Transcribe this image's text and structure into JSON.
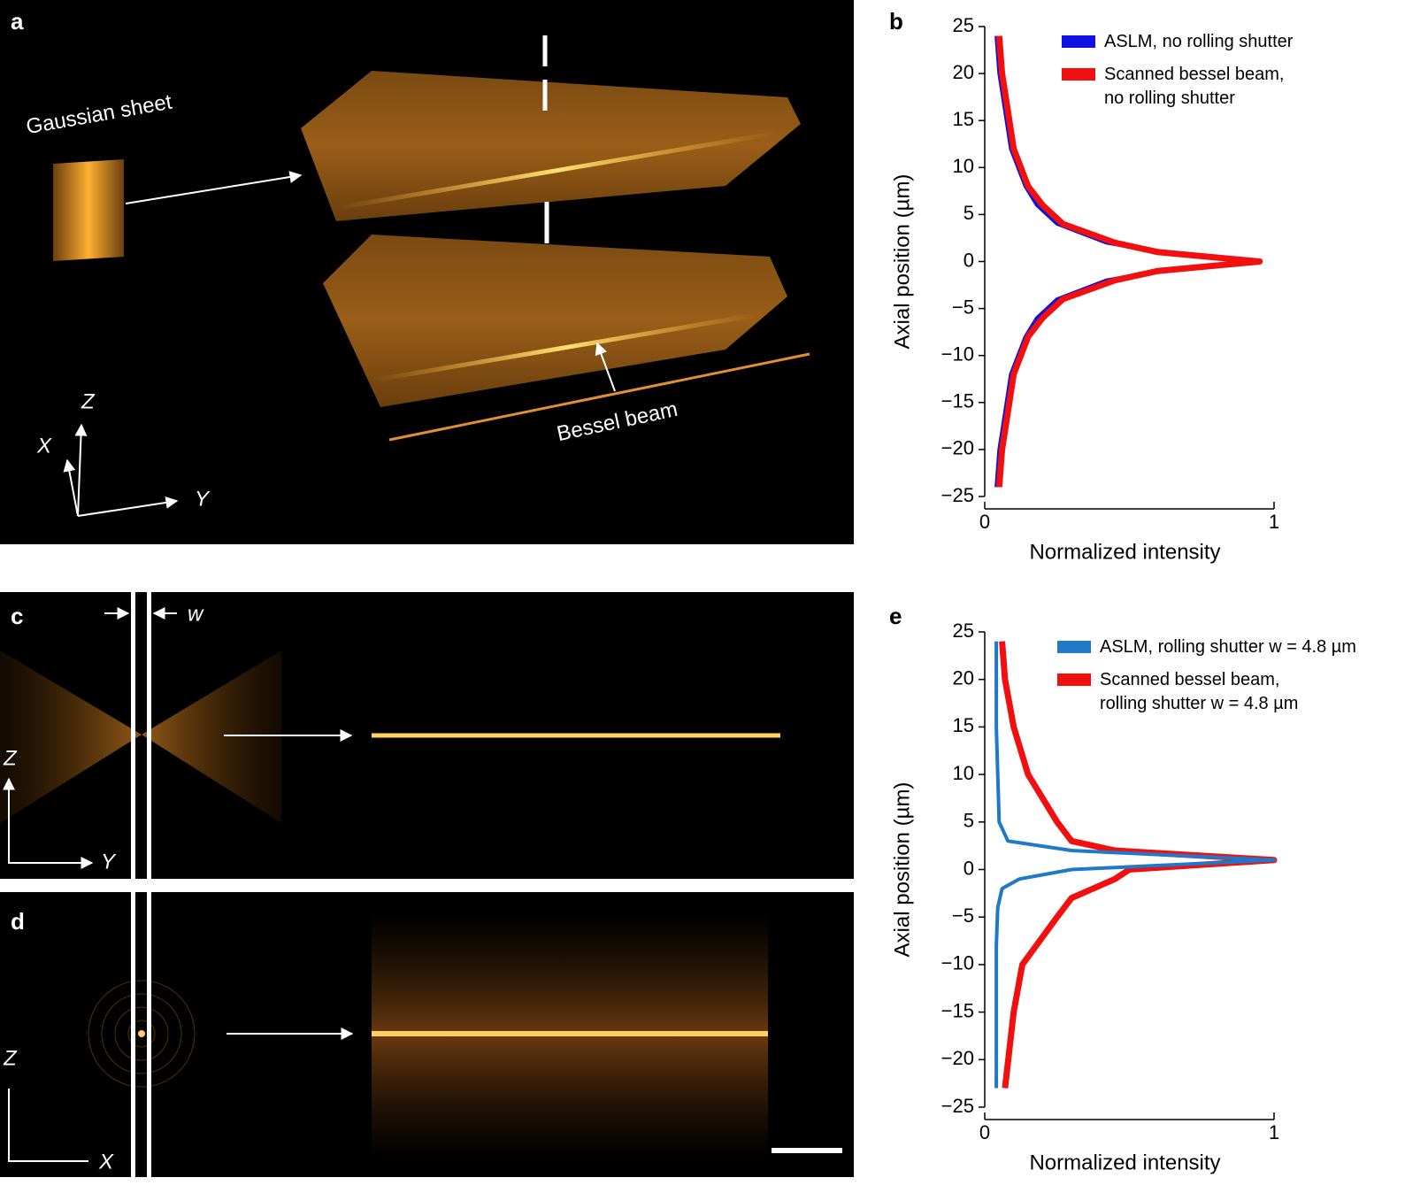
{
  "panel_labels": [
    "a",
    "b",
    "c",
    "d",
    "e"
  ],
  "panel_a": {
    "labels": [
      "Gaussian sheet",
      "Bessel beam"
    ],
    "axes": [
      "Z",
      "X",
      "Y"
    ]
  },
  "panel_c": {
    "width_label": "w",
    "axes": [
      "Z",
      "Y"
    ]
  },
  "panel_d": {
    "axes": [
      "Z",
      "X"
    ]
  },
  "chart_data": [
    {
      "type": "line",
      "xlabel": "Normalized intensity",
      "ylabel": "Axial position (µm)",
      "xlim": [
        0,
        1
      ],
      "xticks": [
        0,
        1
      ],
      "ylim": [
        -25,
        25
      ],
      "yticks": [
        {
          "value": -25,
          "label": "−25"
        },
        {
          "value": -20,
          "label": "−20"
        },
        {
          "value": -15,
          "label": "−15"
        },
        {
          "value": -10,
          "label": "−10"
        },
        {
          "value": -5,
          "label": "−5"
        },
        0,
        5,
        10,
        15,
        20,
        25
      ],
      "series": [
        {
          "name": "ASLM, no rolling shutter",
          "color": "#1010e0",
          "y": [
            -24,
            -20,
            -16,
            -12,
            -8,
            -6,
            -4,
            -2,
            -1,
            0,
            1,
            2,
            4,
            6,
            8,
            12,
            16,
            20,
            24
          ],
          "x": [
            0.04,
            0.05,
            0.07,
            0.09,
            0.14,
            0.18,
            0.25,
            0.42,
            0.6,
            0.95,
            0.6,
            0.42,
            0.25,
            0.18,
            0.14,
            0.09,
            0.07,
            0.05,
            0.04
          ]
        },
        {
          "name": "Scanned bessel beam,\nno rolling shutter",
          "color": "#f01010",
          "y": [
            -24,
            -20,
            -16,
            -12,
            -8,
            -6,
            -4,
            -2,
            -1,
            0,
            1,
            2,
            4,
            6,
            8,
            12,
            16,
            20,
            24
          ],
          "x": [
            0.05,
            0.06,
            0.08,
            0.1,
            0.15,
            0.2,
            0.27,
            0.45,
            0.6,
            0.95,
            0.6,
            0.45,
            0.27,
            0.2,
            0.15,
            0.1,
            0.08,
            0.06,
            0.05
          ]
        }
      ]
    },
    {
      "type": "line",
      "xlabel": "Normalized intensity",
      "ylabel": "Axial position (µm)",
      "xlim": [
        0,
        1
      ],
      "xticks": [
        0,
        1
      ],
      "ylim": [
        -25,
        25
      ],
      "yticks": [
        {
          "value": -25,
          "label": "−25"
        },
        {
          "value": -20,
          "label": "−20"
        },
        {
          "value": -15,
          "label": "−15"
        },
        {
          "value": -10,
          "label": "−10"
        },
        {
          "value": -5,
          "label": "−5"
        },
        0,
        5,
        10,
        15,
        20,
        25
      ],
      "series": [
        {
          "name": "Scanned bessel beam,\nrolling shutter w = 4.8 µm",
          "color": "#f01010",
          "y": [
            -23,
            -15,
            -10,
            -5,
            -3,
            -1,
            0,
            1,
            2,
            3,
            5,
            10,
            15,
            20,
            24
          ],
          "x": [
            0.07,
            0.1,
            0.13,
            0.25,
            0.3,
            0.45,
            0.5,
            1.0,
            0.45,
            0.3,
            0.25,
            0.15,
            0.1,
            0.07,
            0.06
          ]
        },
        {
          "name": "ASLM, rolling shutter w = 4.8 µm",
          "color": "#1f78c8",
          "y": [
            -23,
            -15,
            -8,
            -4,
            -2,
            -1,
            0,
            1,
            2,
            3,
            5,
            10,
            15,
            24
          ],
          "x": [
            0.04,
            0.04,
            0.04,
            0.045,
            0.06,
            0.12,
            0.3,
            1.0,
            0.3,
            0.08,
            0.05,
            0.045,
            0.04,
            0.04
          ]
        }
      ]
    }
  ]
}
